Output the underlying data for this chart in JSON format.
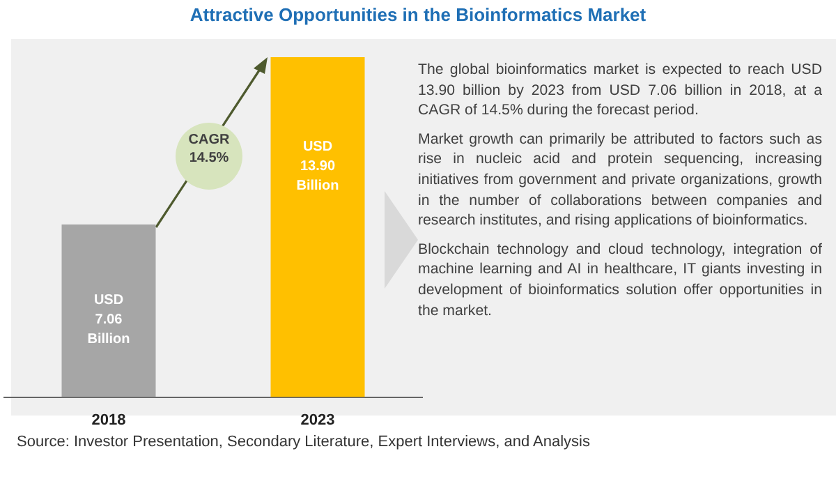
{
  "chart_data": {
    "type": "bar",
    "title": "Attractive Opportunities in the Bioinformatics Market",
    "categories": [
      "2018",
      "2023"
    ],
    "values": [
      7.06,
      13.9
    ],
    "colors": [
      "#a6a6a6",
      "#ffc000"
    ],
    "value_labels": [
      "USD 7.06 Billion",
      "USD 13.90 Billion"
    ],
    "ylim": [
      0,
      13.9
    ],
    "tick_labels": "x",
    "grid": false,
    "legend": false,
    "annotations": [
      "CAGR 14.5%",
      "The global bioinformatics market is expected to reach USD 13.90 billion by 2023 from USD 7.06 billion in 2018, at a CAGR of 14.5% during the forecast period.",
      "Market growth can primarily be attributed to factors such as rise in nucleic acid and protein sequencing, increasing initiatives from government and private organizations, growth in the number of collaborations between companies and research institutes, and rising applications of bioinformatics.",
      "Blockchain technology and cloud technology, integration of machine learning and AI in healthcare, IT giants investing in development of bioinformatics solution offer opportunities in the market.",
      "Source: Investor Presentation, Secondary Literature, Expert Interviews, and Analysis"
    ]
  }
}
